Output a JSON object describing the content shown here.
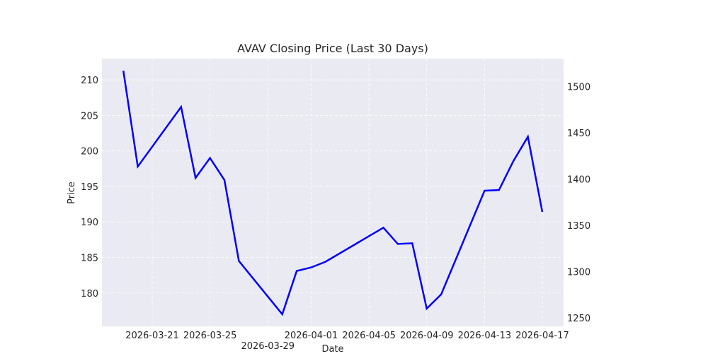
{
  "chart_data": {
    "type": "line",
    "title": "AVAV Closing Price (Last 30 Days)",
    "xlabel": "Date",
    "ylabel": "Price",
    "grid": true,
    "grid_style": "dashed",
    "background_color": "#EAEAF2",
    "line_color": "#0000FF",
    "x_ticks": [
      "2026-03-21",
      "2026-03-25",
      "2026-03-29",
      "2026-04-01",
      "2026-04-05",
      "2026-04-09",
      "2026-04-13",
      "2026-04-17"
    ],
    "y_ticks": [
      180,
      185,
      190,
      195,
      200,
      205,
      210
    ],
    "ylim": [
      175.3,
      213.0
    ],
    "secondary_y_ticks": [
      1250,
      1300,
      1350,
      1400,
      1450,
      1500
    ],
    "secondary_ylim": [
      1241,
      1530
    ],
    "series": [
      {
        "x": [
          "2026-03-19",
          "2026-03-20",
          "2026-03-23",
          "2026-03-24",
          "2026-03-25",
          "2026-03-26",
          "2026-03-27",
          "2026-03-30",
          "2026-03-31",
          "2026-04-01",
          "2026-04-02",
          "2026-04-06",
          "2026-04-07",
          "2026-04-08",
          "2026-04-09",
          "2026-04-10",
          "2026-04-13",
          "2026-04-14",
          "2026-04-15",
          "2026-04-16",
          "2026-04-17"
        ],
        "values": [
          211.3,
          197.8,
          206.2,
          196.2,
          199.0,
          195.9,
          184.5,
          177.0,
          183.1,
          183.6,
          184.4,
          189.2,
          186.9,
          187.0,
          177.8,
          179.8,
          194.4,
          194.5,
          198.6,
          202.0,
          191.4
        ]
      }
    ]
  }
}
